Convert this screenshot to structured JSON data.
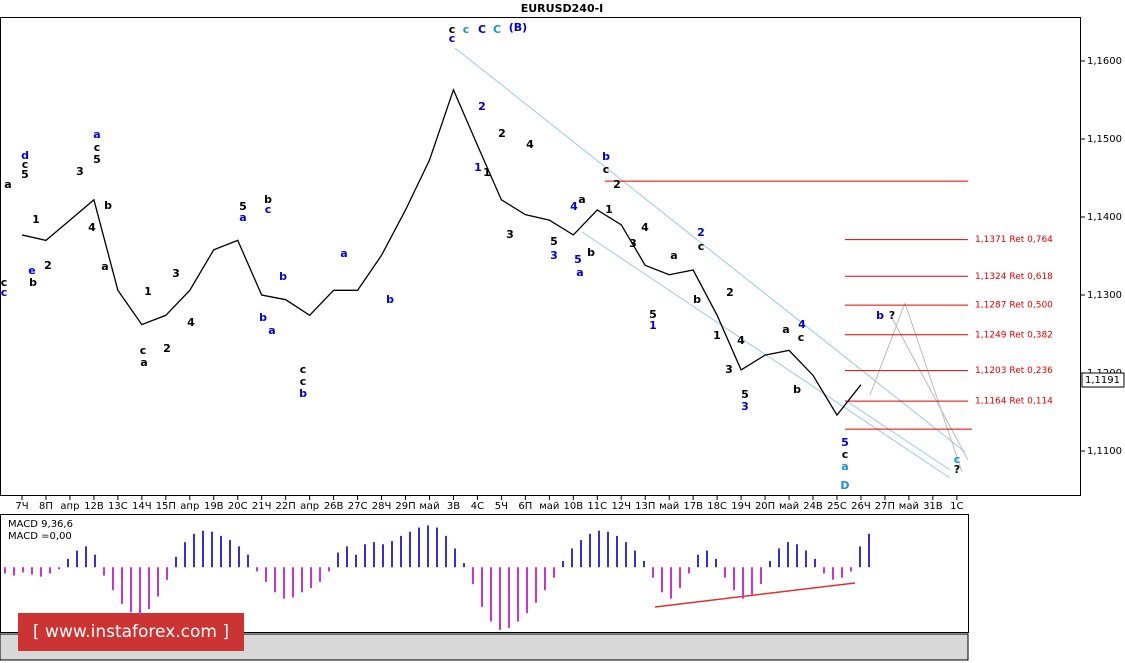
{
  "chart_data": {
    "type": "line",
    "title": "EURUSD240-I",
    "categories": [
      "7Ч",
      "8П",
      "апр",
      "12В",
      "13С",
      "14Ч",
      "15П",
      "апр",
      "19В",
      "20С",
      "21Ч",
      "22П",
      "апр",
      "26В",
      "27С",
      "28Ч",
      "29П",
      "май",
      "3В",
      "4С",
      "5Ч",
      "6П",
      "май",
      "10В",
      "11С",
      "12Ч",
      "13П",
      "май",
      "17В",
      "18С",
      "19Ч",
      "20П",
      "май",
      "24В",
      "25С",
      "26Ч",
      "27П",
      "май",
      "31В",
      "1С"
    ],
    "values": [
      1.1377,
      1.137,
      1.1396,
      1.1422,
      1.1306,
      1.1262,
      1.1274,
      1.1306,
      1.1358,
      1.137,
      1.13,
      1.1294,
      1.1274,
      1.1306,
      1.1306,
      1.1351,
      1.1409,
      1.1473,
      1.1563,
      1.1492,
      1.1422,
      1.1403,
      1.1396,
      1.1377,
      1.1409,
      1.139,
      1.1338,
      1.1326,
      1.1332,
      1.1274,
      1.1204,
      1.1223,
      1.1229,
      1.1197,
      1.1146,
      1.1185,
      null,
      null,
      null,
      null
    ],
    "color": "#000000",
    "ylim": [
      1.10436,
      1.16551
    ],
    "yticks": [
      {
        "value": 1.16,
        "label": "1,1600"
      },
      {
        "value": 1.15,
        "label": "1,1500"
      },
      {
        "value": 1.14,
        "label": "1,1400"
      },
      {
        "value": 1.13,
        "label": "1,1300"
      },
      {
        "value": 1.12,
        "label": "1,1200"
      },
      {
        "value": 1.11,
        "label": "1,1100"
      }
    ],
    "current_price": {
      "value": 1.1191,
      "label": "1,1191"
    },
    "fib_levels": [
      {
        "value": 1.1371,
        "label": "1,1371 Ret 0,764"
      },
      {
        "value": 1.1324,
        "label": "1,1324 Ret 0,618"
      },
      {
        "value": 1.1287,
        "label": "1,1287 Ret 0,500"
      },
      {
        "value": 1.1249,
        "label": "1,1249 Ret 0,382"
      },
      {
        "value": 1.1203,
        "label": "1,1203 Ret 0,236"
      },
      {
        "value": 1.1164,
        "label": "1,1164 Ret 0,114"
      }
    ],
    "fib_range": [
      1.1446,
      1.1128
    ],
    "fib_color": "#e00000",
    "annotations": [
      {
        "text": "c",
        "color": "#000000"
      },
      {
        "text": "c",
        "color": "#0000cc"
      },
      {
        "text": "c",
        "color": "#1e90d0"
      },
      {
        "text": "C",
        "color": "#0000cc"
      },
      {
        "text": "C",
        "color": "#1e90d0"
      },
      {
        "text": "(B)",
        "color": "#0000cc"
      },
      {
        "text": "c",
        "color": "#000000"
      },
      {
        "text": "c",
        "color": "#0000cc"
      },
      {
        "text": "a",
        "color": "#000000"
      },
      {
        "text": "d",
        "color": "#0000cc"
      },
      {
        "text": "c",
        "color": "#000000"
      },
      {
        "text": "5",
        "color": "#000000"
      },
      {
        "text": "e",
        "color": "#0000cc"
      },
      {
        "text": "b",
        "color": "#000000"
      },
      {
        "text": "1",
        "color": "#000000"
      },
      {
        "text": "2",
        "color": "#000000"
      },
      {
        "text": "3",
        "color": "#000000"
      },
      {
        "text": "4",
        "color": "#000000"
      },
      {
        "text": "5",
        "color": "#000000"
      },
      {
        "text": "a",
        "color": "#0000cc"
      },
      {
        "text": "c",
        "color": "#000000"
      },
      {
        "text": "b",
        "color": "#000000"
      },
      {
        "text": "a",
        "color": "#000000"
      },
      {
        "text": "1",
        "color": "#000000"
      },
      {
        "text": "2",
        "color": "#000000"
      },
      {
        "text": "c",
        "color": "#000000"
      },
      {
        "text": "a",
        "color": "#000000"
      },
      {
        "text": "3",
        "color": "#000000"
      },
      {
        "text": "4",
        "color": "#000000"
      },
      {
        "text": "5",
        "color": "#000000"
      },
      {
        "text": "a",
        "color": "#0000cc"
      },
      {
        "text": "b",
        "color": "#000000"
      },
      {
        "text": "c",
        "color": "#0000cc"
      },
      {
        "text": "b",
        "color": "#0000cc"
      },
      {
        "text": "b",
        "color": "#0000cc"
      },
      {
        "text": "a",
        "color": "#0000cc"
      },
      {
        "text": "c",
        "color": "#000000"
      },
      {
        "text": "c",
        "color": "#000000"
      },
      {
        "text": "b",
        "color": "#0000cc"
      },
      {
        "text": "a",
        "color": "#0000cc"
      },
      {
        "text": "b",
        "color": "#0000cc"
      },
      {
        "text": "2",
        "color": "#0000cc"
      },
      {
        "text": "2",
        "color": "#000000"
      },
      {
        "text": "1",
        "color": "#0000cc"
      },
      {
        "text": "1",
        "color": "#000000"
      },
      {
        "text": "4",
        "color": "#000000"
      },
      {
        "text": "3",
        "color": "#000000"
      },
      {
        "text": "4",
        "color": "#0000cc"
      },
      {
        "text": "a",
        "color": "#000000"
      },
      {
        "text": "5",
        "color": "#000000"
      },
      {
        "text": "3",
        "color": "#0000cc"
      },
      {
        "text": "5",
        "color": "#0000cc"
      },
      {
        "text": "a",
        "color": "#0000cc"
      },
      {
        "text": "b",
        "color": "#000000"
      },
      {
        "text": "b",
        "color": "#0000cc"
      },
      {
        "text": "c",
        "color": "#000000"
      },
      {
        "text": "2",
        "color": "#000000"
      },
      {
        "text": "1",
        "color": "#000000"
      },
      {
        "text": "3",
        "color": "#000000"
      },
      {
        "text": "4",
        "color": "#000000"
      },
      {
        "text": "5",
        "color": "#000000"
      },
      {
        "text": "1",
        "color": "#0000cc"
      },
      {
        "text": "a",
        "color": "#000000"
      },
      {
        "text": "b",
        "color": "#000000"
      },
      {
        "text": "2",
        "color": "#0000cc"
      },
      {
        "text": "c",
        "color": "#000000"
      },
      {
        "text": "2",
        "color": "#000000"
      },
      {
        "text": "1",
        "color": "#000000"
      },
      {
        "text": "4",
        "color": "#000000"
      },
      {
        "text": "3",
        "color": "#000000"
      },
      {
        "text": "5",
        "color": "#000000"
      },
      {
        "text": "3",
        "color": "#0000cc"
      },
      {
        "text": "a",
        "color": "#000000"
      },
      {
        "text": "4",
        "color": "#0000cc"
      },
      {
        "text": "c",
        "color": "#000000"
      },
      {
        "text": "b",
        "color": "#000000"
      },
      {
        "text": "5",
        "color": "#0000cc"
      },
      {
        "text": "c",
        "color": "#000000"
      },
      {
        "text": "a",
        "color": "#1e90d0"
      },
      {
        "text": "D",
        "color": "#1e90d0"
      },
      {
        "text": "b",
        "color": "#0000cc"
      },
      {
        "text": "?",
        "color": "#000000"
      },
      {
        "text": "c",
        "color": "#1e90d0"
      },
      {
        "text": "?",
        "color": "#000000"
      }
    ],
    "macd": {
      "title": "MACD 9,36,6",
      "value_label": "MACD =0,00",
      "ylim": [
        -62,
        50
      ],
      "positive_color": "#3333cc",
      "negative_color": "#cc33cc",
      "values": [
        -6,
        -8,
        -5,
        -7,
        -9,
        -6,
        -2,
        8,
        16,
        20,
        12,
        -8,
        -22,
        -35,
        -43,
        -46,
        -40,
        -28,
        -12,
        10,
        24,
        32,
        35,
        34,
        30,
        26,
        20,
        12,
        -4,
        -14,
        -24,
        -30,
        -29,
        -24,
        -20,
        -14,
        -4,
        14,
        20,
        12,
        22,
        24,
        22,
        25,
        30,
        34,
        38,
        40,
        38,
        30,
        18,
        4,
        -16,
        -38,
        -52,
        -60,
        -58,
        -52,
        -44,
        -34,
        -22,
        -10,
        6,
        18,
        26,
        32,
        35,
        34,
        30,
        24,
        16,
        6,
        -10,
        -24,
        -30,
        -20,
        -6,
        12,
        16,
        8,
        -10,
        -22,
        -30,
        -26,
        -16,
        6,
        18,
        24,
        22,
        16,
        8,
        -6,
        -12,
        -10,
        -4,
        20,
        32
      ]
    },
    "watermark": "[ www.instaforex.com ]"
  }
}
